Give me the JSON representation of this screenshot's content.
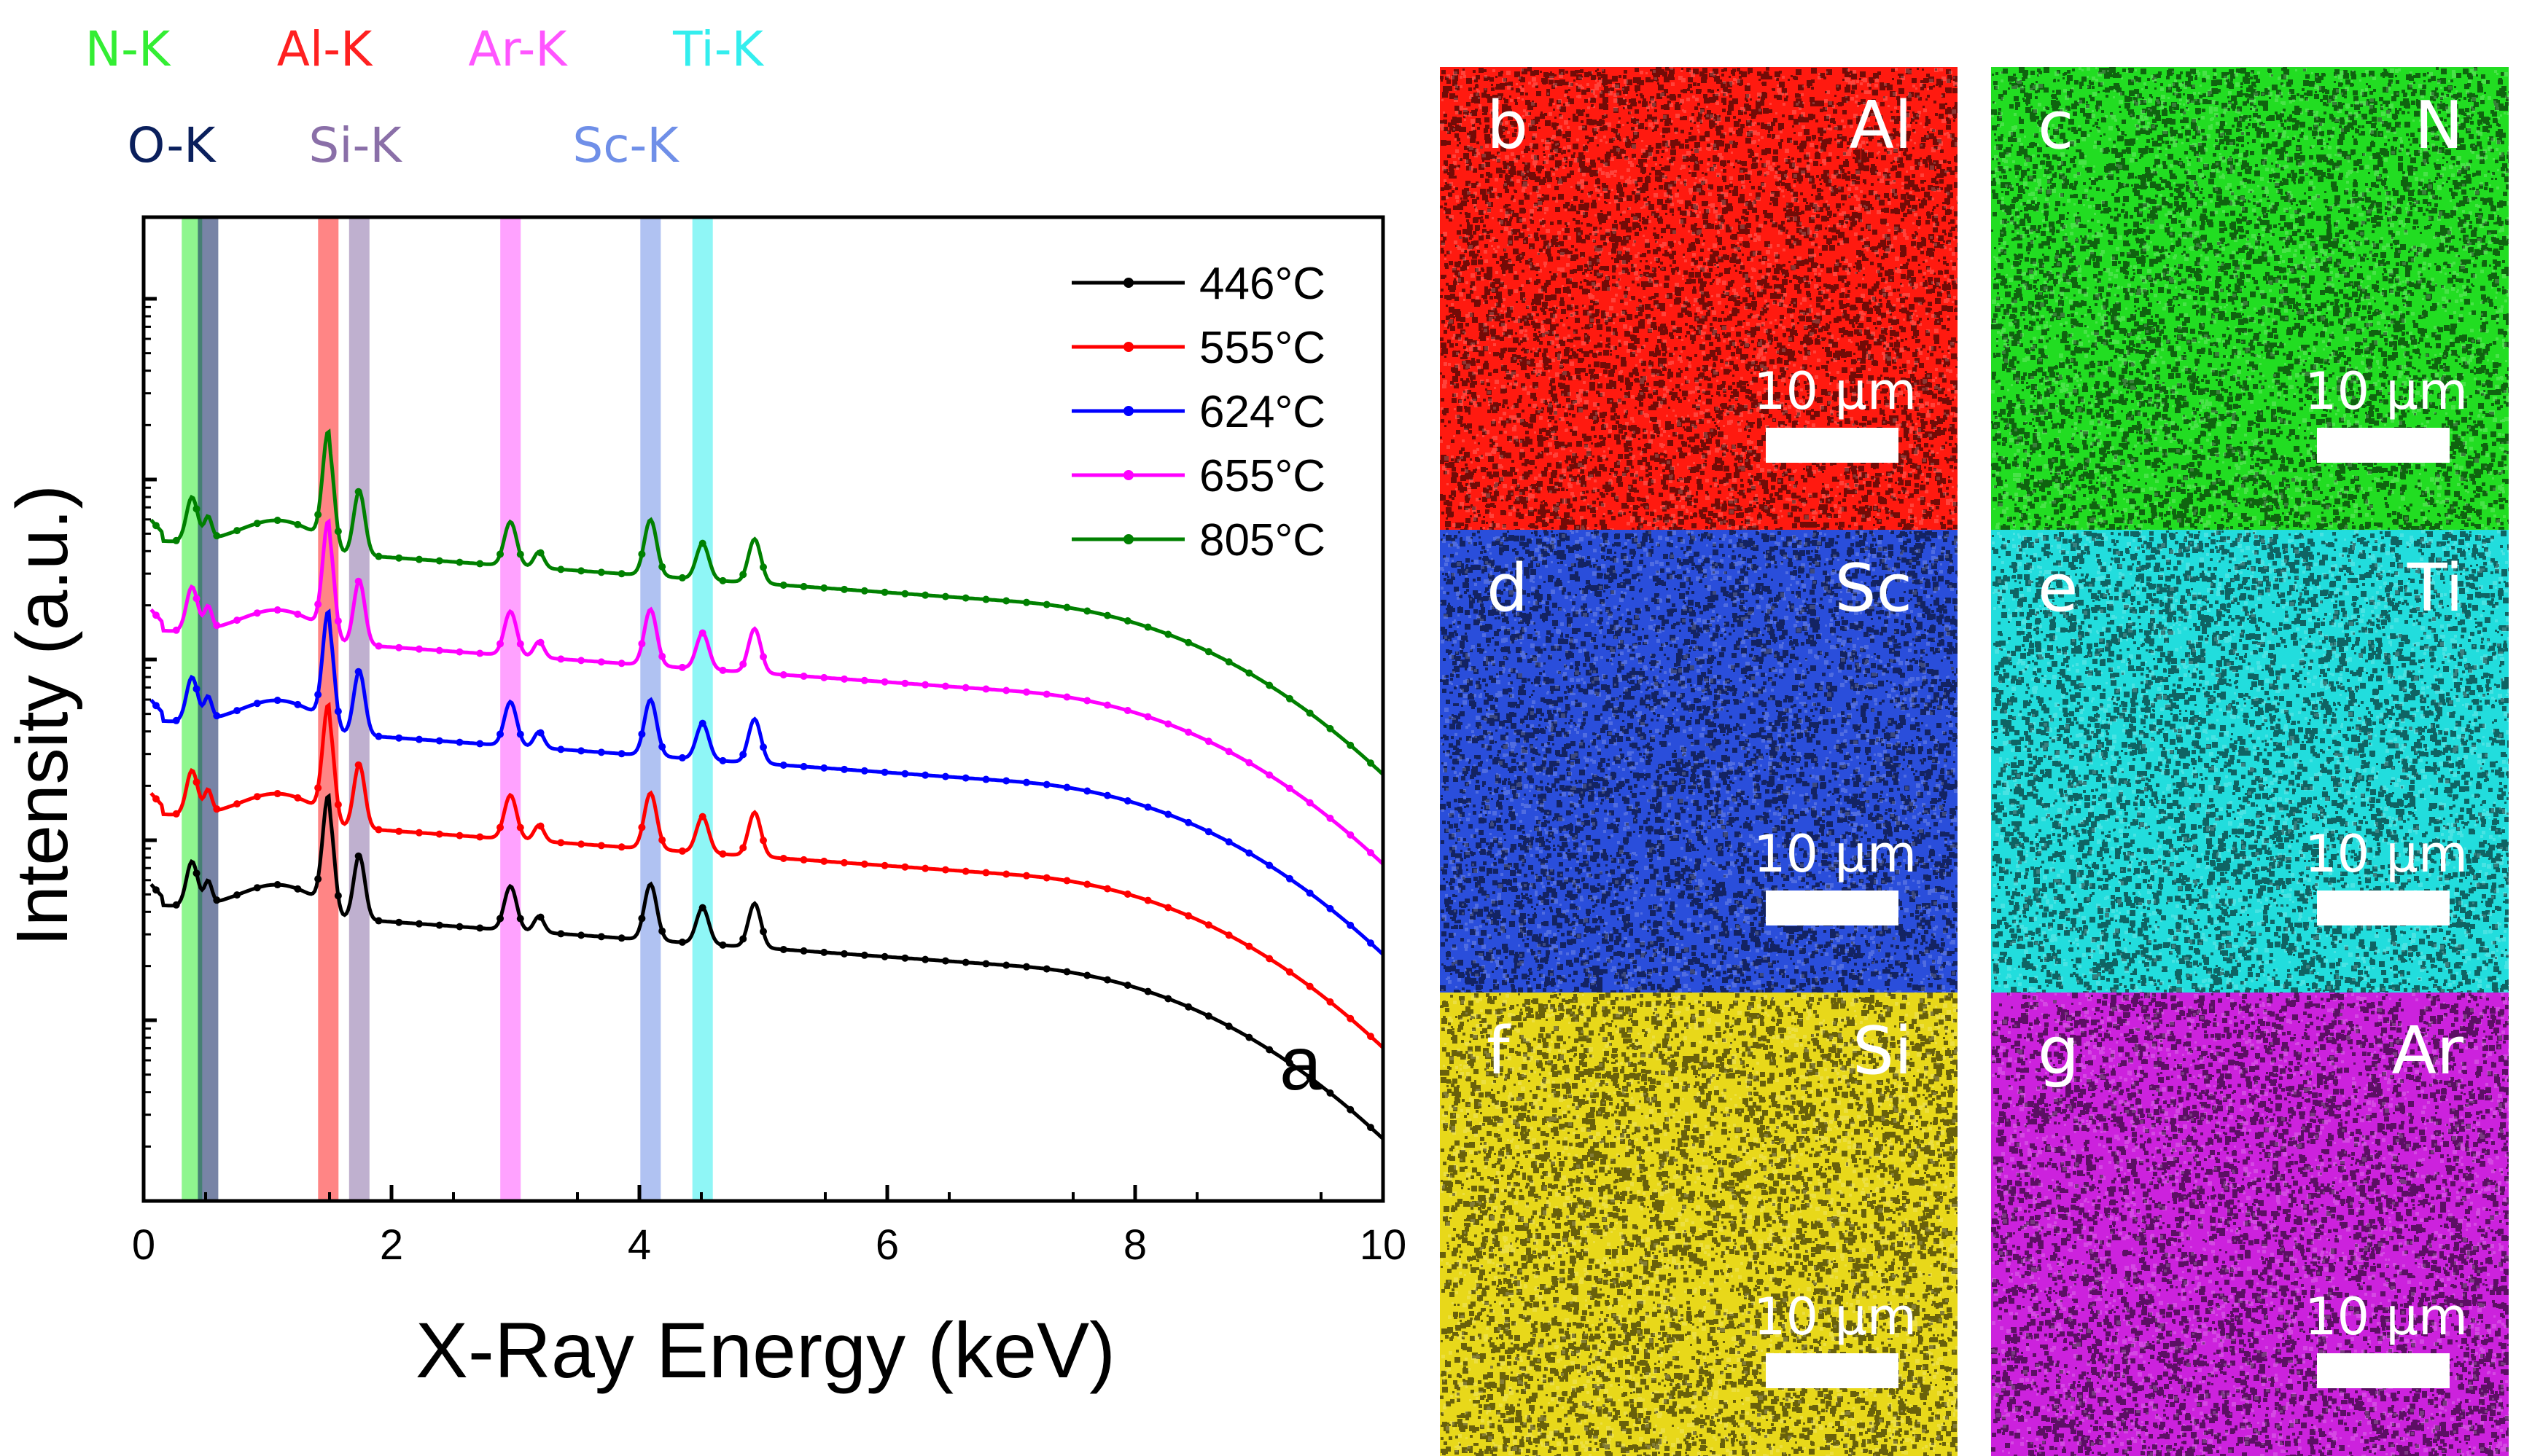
{
  "chart_data": {
    "type": "line",
    "xlabel": "X-Ray Energy (keV)",
    "ylabel": "Intensity (a.u.)",
    "xlim": [
      0,
      10
    ],
    "x_ticks": [
      "0",
      "2",
      "4",
      "6",
      "8",
      "10"
    ],
    "y_scale": "log",
    "y_tick_labels": "none",
    "panel_label": "a",
    "legend_position": "top-right",
    "series": [
      {
        "name": "446°C",
        "color": "#000000",
        "marker": "square",
        "offset": 0
      },
      {
        "name": "555°C",
        "color": "#ff0000",
        "marker": "circle",
        "offset": 1
      },
      {
        "name": "624°C",
        "color": "#0000ff",
        "marker": "triangle-up",
        "offset": 2
      },
      {
        "name": "655°C",
        "color": "#ff00ff",
        "marker": "triangle-down",
        "offset": 3
      },
      {
        "name": "805°C",
        "color": "#008000",
        "marker": "diamond",
        "offset": 4
      }
    ],
    "peaks_kev": [
      0.39,
      0.52,
      1.49,
      1.74,
      2.96,
      3.19,
      4.09,
      4.51,
      4.93
    ],
    "element_lines": [
      {
        "label": "N-K",
        "energy_kev": 0.39,
        "color": "#33ee33"
      },
      {
        "label": "O-K",
        "energy_kev": 0.52,
        "color": "#0a1f5c"
      },
      {
        "label": "Al-K",
        "energy_kev": 1.49,
        "color": "#ff2020"
      },
      {
        "label": "Si-K",
        "energy_kev": 1.74,
        "color": "#8a6fa8"
      },
      {
        "label": "Ar-K",
        "energy_kev": 2.96,
        "color": "#ff55ff"
      },
      {
        "label": "Sc-K",
        "energy_kev": 4.09,
        "color": "#6f8fe8"
      },
      {
        "label": "Ti-K",
        "energy_kev": 4.51,
        "color": "#33eeee"
      }
    ]
  },
  "maps": [
    {
      "letter": "b",
      "element": "Al",
      "color": "#ff1a10",
      "scale": "10 µm"
    },
    {
      "letter": "c",
      "element": "N",
      "color": "#22dd22",
      "scale": "10 µm"
    },
    {
      "letter": "d",
      "element": "Sc",
      "color": "#2a4edb",
      "scale": "10 µm"
    },
    {
      "letter": "e",
      "element": "Ti",
      "color": "#22dddd",
      "scale": "10 µm"
    },
    {
      "letter": "f",
      "element": "Si",
      "color": "#e8d81a",
      "scale": "10 µm"
    },
    {
      "letter": "g",
      "element": "Ar",
      "color": "#cc22dd",
      "scale": "10 µm"
    }
  ]
}
